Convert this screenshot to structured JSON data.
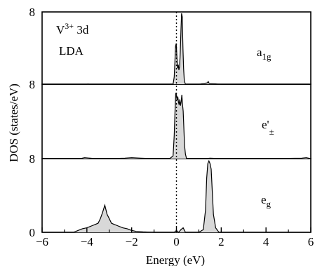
{
  "chart_data": [
    {
      "type": "area",
      "panel": "a1g",
      "annotation_lines": [
        "V3+ 3d",
        "LDA"
      ],
      "orbital_label": "a1g",
      "series": [
        {
          "x": [
            -6,
            -4,
            -3.95,
            -3.9,
            -3,
            -2,
            -1,
            -0.15,
            -0.1,
            -0.07,
            -0.04,
            -0.01,
            0.02,
            0.05,
            0.08,
            0.11,
            0.14,
            0.17,
            0.2,
            0.23,
            0.26,
            0.29,
            0.32,
            0.35,
            0.4,
            1,
            1.38,
            1.42,
            1.46,
            2,
            6
          ],
          "y": [
            0,
            0,
            0.05,
            0,
            0,
            0,
            0,
            0,
            0.8,
            2.5,
            4.3,
            4.6,
            3.2,
            1.8,
            2.2,
            1.6,
            2.0,
            3.5,
            6.0,
            8.0,
            7.6,
            4.0,
            1.8,
            0.4,
            0,
            0,
            0.15,
            0.3,
            0.1,
            0,
            0
          ]
        }
      ]
    },
    {
      "type": "area",
      "panel": "e_pm",
      "orbital_label": "e'±",
      "series": [
        {
          "x": [
            -6,
            -4.3,
            -4.1,
            -3.6,
            -3,
            -2.3,
            -2.0,
            -1.6,
            -1,
            -0.3,
            -0.15,
            -0.1,
            -0.06,
            -0.03,
            0,
            0.03,
            0.06,
            0.09,
            0.12,
            0.15,
            0.18,
            0.21,
            0.24,
            0.27,
            0.3,
            0.33,
            0.36,
            0.4,
            0.45,
            1.3,
            1.5,
            2,
            4,
            5.6,
            5.8,
            6
          ],
          "y": [
            0,
            0,
            0.1,
            0,
            0,
            0.05,
            0.1,
            0.05,
            0,
            0,
            0.3,
            2.5,
            5.5,
            7.2,
            7.0,
            6.4,
            6.8,
            6.2,
            5.9,
            6.5,
            5.8,
            6.2,
            7.0,
            6.0,
            5.2,
            3.5,
            1.5,
            0.5,
            0,
            0,
            0.05,
            0,
            0,
            0.05,
            0.1,
            0
          ]
        }
      ]
    },
    {
      "type": "area",
      "panel": "eg",
      "orbital_label": "eg",
      "series": [
        {
          "x": [
            -6,
            -4.6,
            -4.4,
            -4.2,
            -4.0,
            -3.8,
            -3.6,
            -3.5,
            -3.4,
            -3.3,
            -3.2,
            -3.1,
            -3.0,
            -2.9,
            -2.8,
            -2.6,
            -2.4,
            -2.2,
            -2.0,
            -1.8,
            -1.5,
            -1,
            -0.5,
            -0.1,
            0,
            0.1,
            0.2,
            0.3,
            0.4,
            0.6,
            1.0,
            1.2,
            1.3,
            1.35,
            1.4,
            1.45,
            1.5,
            1.55,
            1.6,
            1.65,
            1.75,
            1.9,
            2.5,
            6
          ],
          "y": [
            0,
            0,
            0.2,
            0.4,
            0.5,
            0.7,
            0.9,
            1.0,
            1.5,
            2.2,
            3.0,
            2.0,
            1.5,
            1.0,
            0.9,
            0.7,
            0.5,
            0.4,
            0.2,
            0.1,
            0.05,
            0,
            0,
            0,
            0.2,
            0,
            0.3,
            0.5,
            0,
            0,
            0,
            0.3,
            2.5,
            6.0,
            7.6,
            7.9,
            7.6,
            7.0,
            4.5,
            2.0,
            0.5,
            0,
            0,
            0
          ]
        }
      ]
    },
    {
      "type": "axes",
      "xlabel": "Energy (eV)",
      "ylabel": "DOS (states/eV)",
      "xlim": [
        -6,
        6
      ],
      "ylim": [
        0,
        8
      ],
      "x_ticks": [
        "−6",
        "−4",
        "−2",
        "0",
        "2",
        "4",
        "6"
      ],
      "y_tick_labels": [
        "8",
        "8",
        "8",
        "0"
      ],
      "fermi_level": 0,
      "fill_color": "#d8d8d8"
    }
  ]
}
